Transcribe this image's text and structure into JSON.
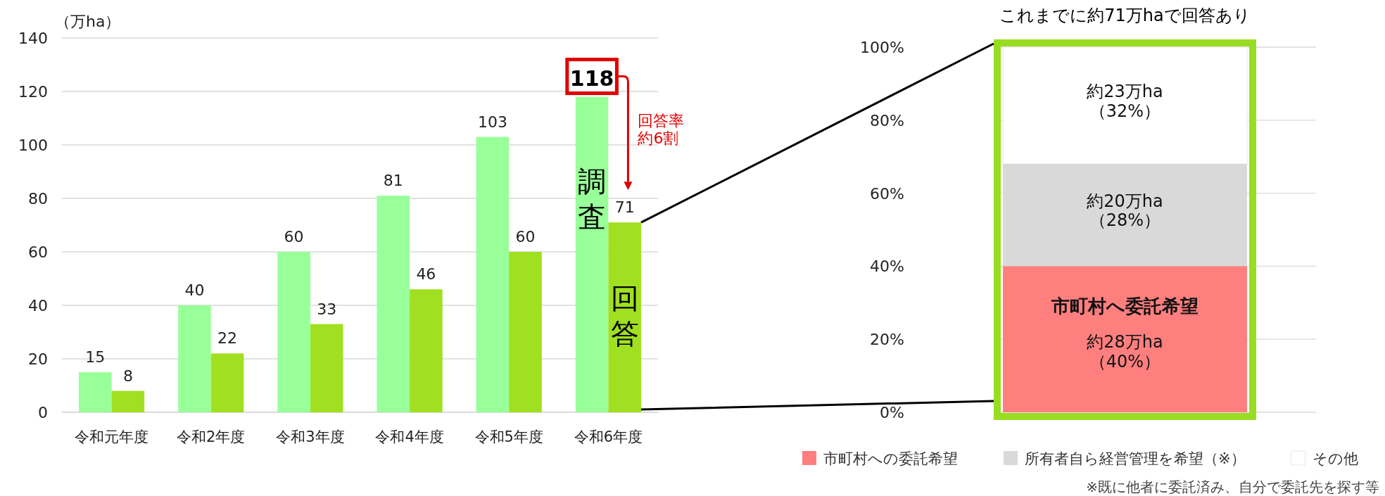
{
  "chart_data": [
    {
      "type": "bar",
      "ylabel": "（万ha）",
      "categories": [
        "令和元年度",
        "令和2年度",
        "令和3年度",
        "令和4年度",
        "令和5年度",
        "令和6年度"
      ],
      "series": [
        {
          "name": "調査",
          "color": "#99ff99",
          "values": [
            15,
            40,
            60,
            81,
            103,
            118
          ]
        },
        {
          "name": "回答",
          "color": "#a0e020",
          "values": [
            8,
            22,
            33,
            46,
            60,
            71
          ]
        }
      ],
      "ylim": [
        0,
        140
      ],
      "yticks": [
        0,
        20,
        40,
        60,
        80,
        100,
        120,
        140
      ],
      "grid": "y",
      "data_labels": true,
      "annotations": [
        "回答率約6割"
      ]
    },
    {
      "type": "bar",
      "stacked": true,
      "title": "これまでに約71万haで回答あり",
      "categories": [
        null
      ],
      "series": [
        {
          "name": "市町村への委託希望",
          "color": "#ff7f7f",
          "values": [
            40
          ],
          "value_labels": [
            "約28万ha\n（40%）"
          ]
        },
        {
          "name": "所有者自ら経営管理を希望（※）",
          "color": "#d9d9d9",
          "values": [
            28
          ],
          "value_labels": [
            "約20万ha\n（28%）"
          ]
        },
        {
          "name": "その他",
          "color": "#ffffff",
          "values": [
            32
          ],
          "value_labels": [
            "約23万ha\n（32%）"
          ]
        }
      ],
      "ylim": [
        0,
        100
      ],
      "yticks": [
        {
          "value": 0,
          "label": "0%"
        },
        {
          "value": 20,
          "label": "20%"
        },
        {
          "value": 40,
          "label": "40%"
        },
        {
          "value": 60,
          "label": "60%"
        },
        {
          "value": 80,
          "label": "80%"
        },
        {
          "value": 100,
          "label": "100%"
        }
      ],
      "grid": "y",
      "legend": "bottom",
      "annotations": [
        "市町村へ委託希望",
        "※既に他者に委託済み、自分で委託先を探す等"
      ]
    }
  ]
}
